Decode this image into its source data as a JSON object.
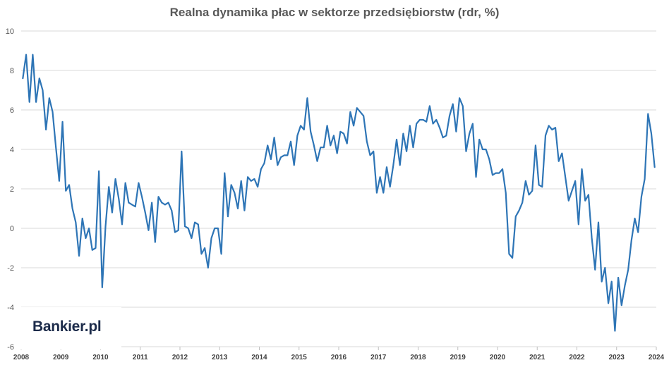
{
  "logo": {
    "text": "Bankier.pl"
  },
  "chart_data": {
    "type": "line",
    "title": "Realna dynamika płac w sektorze przedsiębiorstw (rdr, %)",
    "xlabel": "",
    "ylabel": "",
    "ylim": [
      -6,
      10
    ],
    "yticks": [
      10,
      8,
      6,
      4,
      2,
      0,
      -2,
      -4,
      -6
    ],
    "xlim": [
      2008,
      2024
    ],
    "xticks": [
      "2008",
      "2009",
      "2010",
      "2011",
      "2012",
      "2013",
      "2014",
      "2015",
      "2016",
      "2017",
      "2018",
      "2019",
      "2020",
      "2021",
      "2022",
      "2023",
      "2024"
    ],
    "grid": true,
    "line_color": "#2e75b6",
    "series": [
      {
        "name": "Realna dynamika płac",
        "start": "2008-01",
        "frequency": "monthly",
        "values": [
          7.6,
          8.8,
          6.4,
          8.8,
          6.4,
          7.6,
          7.0,
          5.0,
          6.6,
          5.9,
          4.1,
          2.4,
          5.4,
          1.9,
          2.2,
          1.0,
          0.3,
          -1.4,
          0.5,
          -0.5,
          0.0,
          -1.1,
          -1.0,
          2.9,
          -3.0,
          0.1,
          2.1,
          0.8,
          2.5,
          1.5,
          0.2,
          2.3,
          1.3,
          1.2,
          1.1,
          2.3,
          1.6,
          0.8,
          -0.1,
          1.3,
          -0.7,
          1.6,
          1.3,
          1.2,
          1.3,
          0.9,
          -0.2,
          -0.1,
          3.9,
          0.1,
          0.0,
          -0.5,
          0.3,
          0.2,
          -1.3,
          -1.0,
          -2.0,
          -0.5,
          0.0,
          0.0,
          -1.3,
          2.8,
          0.6,
          2.2,
          1.8,
          1.0,
          2.4,
          0.9,
          2.6,
          2.4,
          2.5,
          2.1,
          3.0,
          3.3,
          4.2,
          3.5,
          4.6,
          3.2,
          3.6,
          3.7,
          3.7,
          4.4,
          3.2,
          4.7,
          5.2,
          5.0,
          6.6,
          4.9,
          4.2,
          3.4,
          4.1,
          4.1,
          5.2,
          4.2,
          4.7,
          3.8,
          4.9,
          4.8,
          4.3,
          5.9,
          5.2,
          6.1,
          5.9,
          5.7,
          4.4,
          3.7,
          3.9,
          1.8,
          2.6,
          1.8,
          3.1,
          2.1,
          3.2,
          4.5,
          3.2,
          4.8,
          3.9,
          5.2,
          4.1,
          5.3,
          5.5,
          5.5,
          5.4,
          6.2,
          5.3,
          5.5,
          5.1,
          4.6,
          4.7,
          5.7,
          6.3,
          4.9,
          6.6,
          6.2,
          3.9,
          4.8,
          5.3,
          2.6,
          4.5,
          4.0,
          4.0,
          3.5,
          2.7,
          2.8,
          2.8,
          3.0,
          1.8,
          -1.3,
          -1.5,
          0.6,
          0.9,
          1.3,
          2.4,
          1.7,
          1.9,
          4.2,
          2.2,
          2.1,
          4.7,
          5.2,
          5.0,
          5.1,
          3.4,
          3.8,
          2.6,
          1.4,
          1.9,
          2.4,
          0.2,
          3.0,
          1.4,
          1.7,
          -0.5,
          -2.1,
          0.3,
          -2.7,
          -2.0,
          -3.8,
          -2.7,
          -5.2,
          -2.5,
          -3.9,
          -2.9,
          -2.1,
          -0.6,
          0.5,
          -0.2,
          1.6,
          2.5,
          5.8,
          4.8,
          3.1
        ]
      }
    ]
  }
}
